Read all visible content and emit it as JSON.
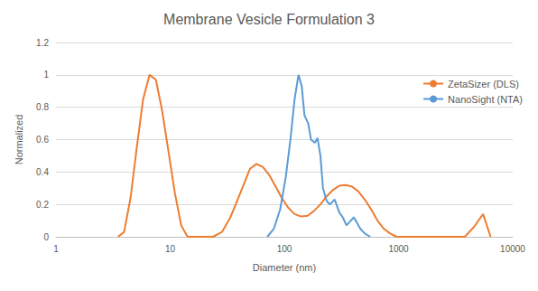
{
  "chart_data": {
    "type": "line",
    "title": "Membrane Vesicle Formulation 3",
    "x_label": "Diameter (nm)",
    "y_label": "Normalized",
    "log": "x",
    "grid": true,
    "legend": "right",
    "xlim": [
      1,
      10000
    ],
    "xticks": [
      1,
      10,
      100,
      1000,
      10000
    ],
    "ylim": [
      0,
      1.2
    ],
    "yticks": [
      0,
      0.2,
      0.4,
      0.6,
      0.8,
      1,
      1.2
    ],
    "series": [
      {
        "name": "ZetaSizer (DLS)",
        "color": "#ed7d31",
        "x": [
          3.5,
          3.95,
          4.5,
          5.1,
          5.8,
          6.6,
          7.5,
          8.5,
          9.7,
          11,
          12.5,
          14.2,
          23.7,
          28.5,
          33.7,
          39,
          44.5,
          50,
          57,
          65,
          74,
          84,
          95,
          108,
          123,
          140,
          160,
          182,
          207,
          235,
          267,
          303,
          344,
          392,
          445,
          506,
          575,
          654,
          743,
          845,
          960,
          3800,
          4570,
          5500,
          6400
        ],
        "values": [
          0,
          0.03,
          0.24,
          0.55,
          0.85,
          1.0,
          0.97,
          0.78,
          0.52,
          0.27,
          0.07,
          0,
          0,
          0.03,
          0.12,
          0.23,
          0.33,
          0.42,
          0.45,
          0.43,
          0.38,
          0.31,
          0.24,
          0.18,
          0.14,
          0.125,
          0.13,
          0.16,
          0.2,
          0.25,
          0.29,
          0.315,
          0.32,
          0.31,
          0.28,
          0.23,
          0.17,
          0.1,
          0.05,
          0.02,
          0,
          0,
          0.06,
          0.14,
          0
        ]
      },
      {
        "name": "NanoSight (NTA)",
        "color": "#5b9bd5",
        "x": [
          71,
          81,
          92,
          103,
          113,
          123,
          133,
          142,
          150,
          162,
          171,
          185,
          195,
          207,
          218,
          235,
          251,
          276,
          303,
          325,
          350,
          371,
          406,
          430,
          462,
          506,
          565
        ],
        "values": [
          0,
          0.05,
          0.17,
          0.37,
          0.6,
          0.85,
          1.0,
          0.93,
          0.75,
          0.7,
          0.6,
          0.58,
          0.61,
          0.5,
          0.3,
          0.22,
          0.2,
          0.23,
          0.15,
          0.12,
          0.07,
          0.09,
          0.12,
          0.09,
          0.05,
          0.02,
          0
        ]
      }
    ]
  }
}
